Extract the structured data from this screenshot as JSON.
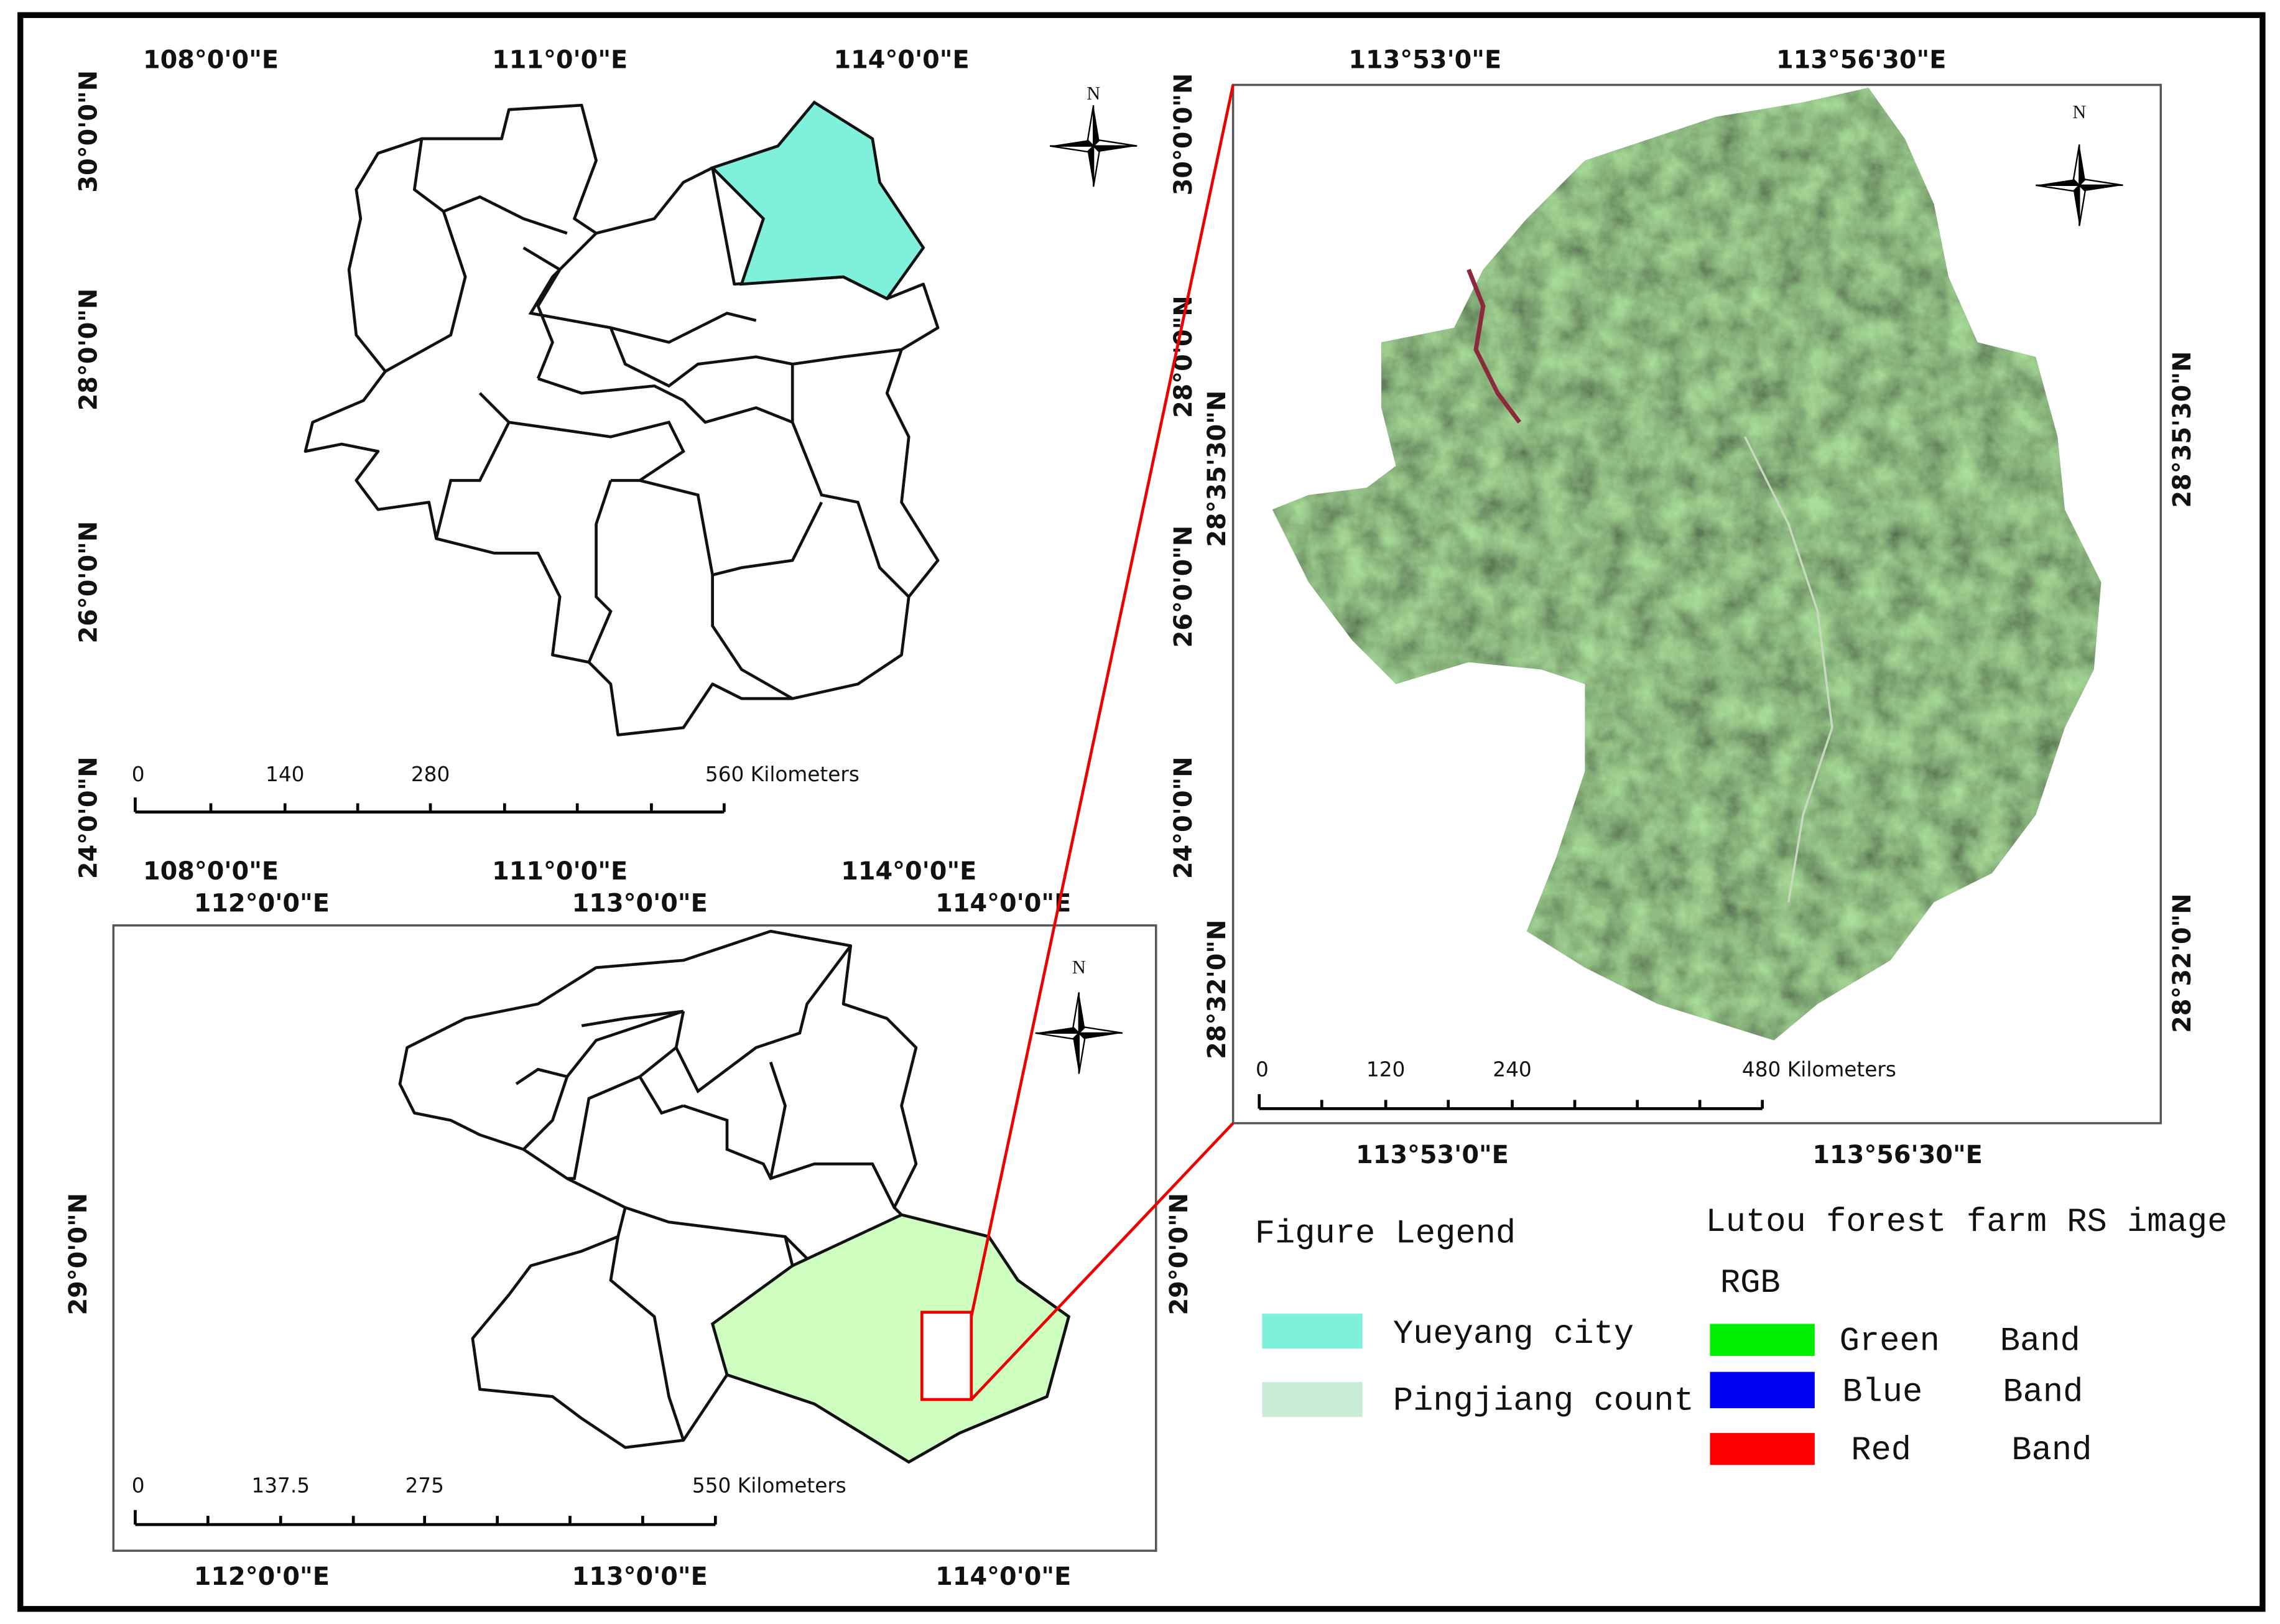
{
  "hunan_map": {
    "top_longitudes": [
      "108°0'0\"E",
      "111°0'0\"E",
      "114°0'0\"E"
    ],
    "latitudes": [
      "30°0'0\"N",
      "28°0'0\"N",
      "26°0'0\"N",
      "24°0'0\"N"
    ],
    "bottom_longitudes": [
      "108°0'0\"E",
      "111°0'0\"E",
      "114°0'0\"E"
    ],
    "scale_bar": [
      0,
      140,
      280,
      "560 Kilometers"
    ],
    "north": "N"
  },
  "yueyang_map": {
    "top_longitudes": [
      "112°0'0\"E",
      "113°0'0\"E",
      "114°0'0\"E"
    ],
    "left_latitude": "29°0'0\"N",
    "right_latitude": "29°0'0\"N",
    "bottom_longitudes": [
      "112°0'0\"E",
      "113°0'0\"E",
      "114°0'0\"E"
    ],
    "scale_bar": [
      0,
      137.5,
      275,
      "550 Kilometers"
    ],
    "north": "N"
  },
  "rs_image_map": {
    "top_longitudes": [
      "113°53'0\"E",
      "113°56'30\"E"
    ],
    "left_latitudes": [
      "30°0'0\"N",
      "28°0'0\"N",
      "28°35'30\"N",
      "26°0'0\"N",
      "24°0'0\"N",
      "28°32'0\"N"
    ],
    "right_latitudes": [
      "28°35'30\"N",
      "28°32'0\"N"
    ],
    "bottom_longitudes": [
      "113°53'0\"E",
      "113°56'30\"E"
    ],
    "scale_bar": [
      0,
      120,
      240,
      "480 Kilometers"
    ],
    "north": "N"
  },
  "legend": {
    "title": "Figure Legend",
    "items": [
      "Yueyang city",
      "Pingjiang count"
    ],
    "rs_title": "Lutou forest farm RS image",
    "rgb": "RGB",
    "bands": [
      "Green   Band",
      "Blue    Band",
      "Red     Band"
    ]
  }
}
